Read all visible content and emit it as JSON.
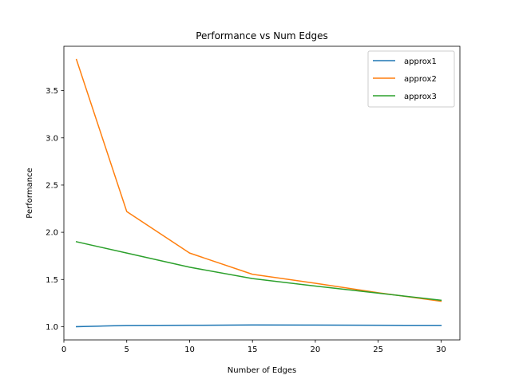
{
  "chart_data": {
    "type": "line",
    "title": "Performance vs Num Edges",
    "xlabel": "Number of Edges",
    "ylabel": "Performance",
    "x": [
      1,
      5,
      10,
      15,
      20,
      25,
      30
    ],
    "xlim": [
      0,
      31.5
    ],
    "ylim": [
      0.86,
      3.97
    ],
    "xticks": [
      0,
      5,
      10,
      15,
      20,
      25,
      30
    ],
    "xtick_labels": [
      "0",
      "5",
      "10",
      "15",
      "20",
      "25",
      "30"
    ],
    "yticks": [
      1.0,
      1.5,
      2.0,
      2.5,
      3.0,
      3.5
    ],
    "ytick_labels": [
      "1.0",
      "1.5",
      "2.0",
      "2.5",
      "3.0",
      "3.5"
    ],
    "grid": false,
    "legend_position": "top-right",
    "series": [
      {
        "name": "approx1",
        "color": "#1f77b4",
        "values": [
          1.0,
          1.013,
          1.015,
          1.018,
          1.017,
          1.015,
          1.014
        ]
      },
      {
        "name": "approx2",
        "color": "#ff7f0e",
        "values": [
          3.83,
          2.22,
          1.78,
          1.555,
          1.46,
          1.36,
          1.27
        ]
      },
      {
        "name": "approx3",
        "color": "#2ca02c",
        "values": [
          1.9,
          1.78,
          1.63,
          1.51,
          1.43,
          1.355,
          1.28
        ]
      }
    ]
  }
}
